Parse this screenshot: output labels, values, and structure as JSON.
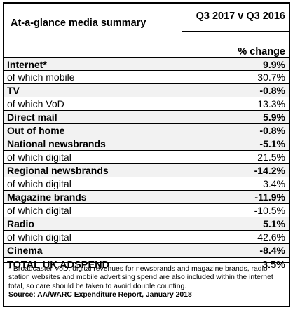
{
  "header": {
    "title": "At-a-glance media summary",
    "period": "Q3 2017 v Q3 2016",
    "unit": "% change"
  },
  "rows": [
    {
      "label": "Internet*",
      "value": "9.9%",
      "kind": "main"
    },
    {
      "label": "of which mobile",
      "value": "30.7%",
      "kind": "sub"
    },
    {
      "label": "TV",
      "value": "-0.8%",
      "kind": "main"
    },
    {
      "label": "of which VoD",
      "value": "13.3%",
      "kind": "sub"
    },
    {
      "label": "Direct mail",
      "value": "5.9%",
      "kind": "main"
    },
    {
      "label": "Out of home",
      "value": "-0.8%",
      "kind": "main"
    },
    {
      "label": "National newsbrands",
      "value": "-5.1%",
      "kind": "main"
    },
    {
      "label": "of which digital",
      "value": "21.5%",
      "kind": "sub"
    },
    {
      "label": "Regional newsbrands",
      "value": "-14.2%",
      "kind": "main"
    },
    {
      "label": "of which digital",
      "value": "3.4%",
      "kind": "sub"
    },
    {
      "label": "Magazine brands",
      "value": "-11.9%",
      "kind": "main"
    },
    {
      "label": "of which digital",
      "value": "-10.5%",
      "kind": "sub"
    },
    {
      "label": "Radio",
      "value": "5.1%",
      "kind": "main"
    },
    {
      "label": "of which digital",
      "value": "42.6%",
      "kind": "sub"
    },
    {
      "label": "Cinema",
      "value": "-8.4%",
      "kind": "main"
    }
  ],
  "total": {
    "label": "TOTAL UK ADSPEND",
    "value": "3.5%"
  },
  "footnote": {
    "note": "* Broadcaster VoD, digital revenues for newsbrands and magazine brands, radio station websites and mobile advertising spend are also included within the internet total, so care should be taken to avoid double counting.",
    "source": "Source: AA/WARC Expenditure Report, January 2018"
  },
  "colors": {
    "main_row_bg": "#f2f2f2",
    "border": "#000000"
  }
}
